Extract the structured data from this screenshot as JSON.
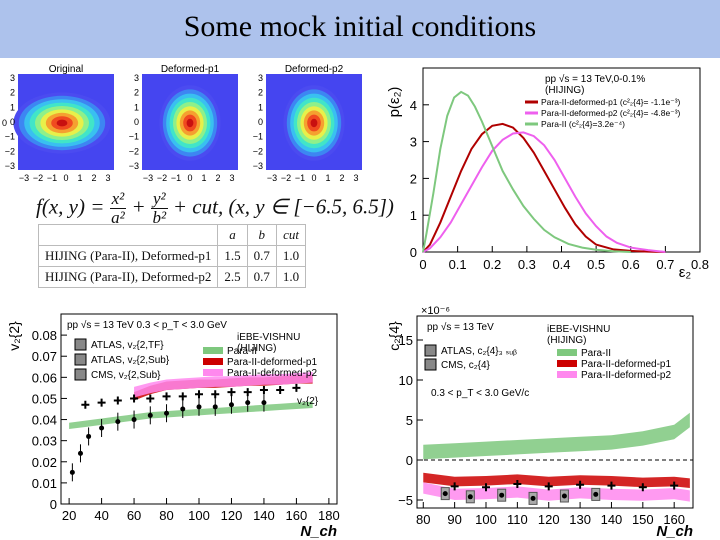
{
  "slide": {
    "title": "Some mock initial conditions"
  },
  "density_maps": {
    "panels": [
      {
        "label": "Original",
        "y_ticks": [
          "3",
          "2",
          "1",
          "0",
          "−1",
          "−2",
          "−3"
        ],
        "x_ticks": [
          "−3",
          "−2",
          "−1",
          "0",
          "1",
          "2",
          "3"
        ]
      },
      {
        "label": "Deformed-p1",
        "y_ticks": [
          "3",
          "2",
          "1",
          "0",
          "−1",
          "−2",
          "−3"
        ],
        "x_ticks": [
          "−3",
          "−2",
          "−1",
          "0",
          "1",
          "2",
          "3"
        ]
      },
      {
        "label": "Deformed-p2",
        "y_ticks": [
          "3",
          "2",
          "1",
          "0",
          "−1",
          "−2",
          "−3"
        ],
        "x_ticks": [
          "−3",
          "−2",
          "−1",
          "0",
          "1",
          "2",
          "3"
        ]
      }
    ],
    "left_tick_partial": "0"
  },
  "formula": {
    "lhs": "f(x, y) =",
    "t1_num": "x²",
    "t1_den": "a²",
    "plus1": "+",
    "t2_num": "y²",
    "t2_den": "b²",
    "rest": "+ cut, (x, y ∈ [−6.5, 6.5])"
  },
  "param_table": {
    "headers": [
      "",
      "a",
      "b",
      "cut"
    ],
    "rows": [
      [
        "HIJING (Para-II), Deformed-p1",
        "1.5",
        "0.7",
        "1.0"
      ],
      [
        "HIJING (Para-II), Deformed-p2",
        "2.5",
        "0.7",
        "1.0"
      ]
    ]
  },
  "chart_data": [
    {
      "type": "line",
      "ylabel": "p(ε₂)",
      "xlabel": "ε₂",
      "xlim": [
        0,
        0.8
      ],
      "ylim": [
        0,
        5
      ],
      "x_ticks": [
        "0",
        "0.1",
        "0.2",
        "0.3",
        "0.4",
        "0.5",
        "0.6",
        "0.7",
        "0.8"
      ],
      "y_ticks": [
        "0",
        "1",
        "2",
        "3",
        "4"
      ],
      "legend": {
        "header1": "pp √s = 13 TeV,0-0.1%",
        "header2": "(HIJING)",
        "entries": [
          "Para-II-deformed-p1 (c²₂{4}= -1.1e⁻³)",
          "Para-II-deformed-p2 (c²₂{4}= -4.8e⁻³)",
          "Para-II (c²₂{4}=3.2e⁻⁴)"
        ],
        "placement": "top-right"
      },
      "series": [
        {
          "name": "Para-II-deformed-p1 (c²₂{4}= -1.1e⁻³)",
          "color": "#b00000",
          "x": [
            0,
            0.02,
            0.05,
            0.08,
            0.11,
            0.14,
            0.17,
            0.2,
            0.23,
            0.26,
            0.29,
            0.32,
            0.35,
            0.38,
            0.41,
            0.44,
            0.47,
            0.5,
            0.55,
            0.6,
            0.65,
            0.7
          ],
          "y": [
            0,
            0.2,
            0.8,
            1.5,
            2.2,
            2.8,
            3.2,
            3.43,
            3.48,
            3.38,
            3.1,
            2.7,
            2.2,
            1.7,
            1.2,
            0.75,
            0.42,
            0.2,
            0.07,
            0.03,
            0.01,
            0
          ]
        },
        {
          "name": "Para-II-deformed-p2 (c²₂{4}= -4.8e⁻³)",
          "color": "#ee60ee",
          "x": [
            0,
            0.02,
            0.05,
            0.08,
            0.11,
            0.14,
            0.17,
            0.2,
            0.23,
            0.26,
            0.29,
            0.32,
            0.35,
            0.38,
            0.41,
            0.44,
            0.47,
            0.5,
            0.53,
            0.56,
            0.6,
            0.65,
            0.7
          ],
          "y": [
            0,
            0.1,
            0.4,
            0.8,
            1.3,
            1.8,
            2.3,
            2.75,
            3.05,
            3.22,
            3.25,
            3.15,
            2.9,
            2.5,
            2.0,
            1.5,
            1.05,
            0.7,
            0.42,
            0.25,
            0.12,
            0.05,
            0
          ]
        },
        {
          "name": "Para-II (c²₂{4}=3.2e⁻⁴)",
          "color": "#7ec87e",
          "x": [
            0,
            0.01,
            0.03,
            0.05,
            0.07,
            0.09,
            0.11,
            0.13,
            0.15,
            0.17,
            0.19,
            0.21,
            0.23,
            0.26,
            0.29,
            0.32,
            0.35,
            0.38,
            0.42,
            0.46,
            0.5,
            0.55,
            0.6
          ],
          "y": [
            0,
            0.5,
            1.6,
            2.8,
            3.7,
            4.2,
            4.35,
            4.25,
            3.95,
            3.55,
            3.1,
            2.65,
            2.2,
            1.7,
            1.25,
            0.9,
            0.6,
            0.4,
            0.22,
            0.12,
            0.06,
            0.02,
            0
          ]
        }
      ]
    },
    {
      "type": "scatter",
      "ylabel": "v₂{2}",
      "xlabel": "N_ch",
      "xlim": [
        15,
        185
      ],
      "ylim": [
        0,
        0.09
      ],
      "x_ticks": [
        "20",
        "40",
        "60",
        "80",
        "100",
        "120",
        "140",
        "160",
        "180"
      ],
      "y_ticks": [
        "0",
        "0.01",
        "0.02",
        "0.03",
        "0.04",
        "0.05",
        "0.06",
        "0.07",
        "0.08"
      ],
      "annotations": {
        "header": "pp √s = 13 TeV 0.3 < p_T < 3.0 GeV",
        "model": "iEBE-VISHNU",
        "model_sub": "(HIJING)",
        "curve_label": "v₂{2}"
      },
      "legend_data": [
        "ATLAS, v₂{2,TF}",
        "ATLAS, v₂{2,Sub}",
        "CMS,   v₂{2,Sub}"
      ],
      "legend_model": [
        "Para-II",
        "Para-II-deformed-p1",
        "Para-II-deformed-p2"
      ],
      "series": [
        {
          "name": "Para-II",
          "color": "#7ec87e",
          "x": [
            20,
            30,
            40,
            50,
            60,
            70,
            80,
            90,
            100,
            110,
            120,
            130,
            140,
            150,
            160,
            170
          ],
          "y": [
            0.037,
            0.038,
            0.039,
            0.04,
            0.041,
            0.042,
            0.0425,
            0.043,
            0.0435,
            0.044,
            0.0445,
            0.045,
            0.0455,
            0.046,
            0.0465,
            0.047
          ],
          "band": 0.0015
        },
        {
          "name": "Para-II-deformed-p1",
          "color": "#cc0000",
          "x": [
            60,
            70,
            80,
            90,
            100,
            110,
            120,
            130,
            140,
            150,
            160,
            170
          ],
          "y": [
            0.051,
            0.054,
            0.056,
            0.0565,
            0.057,
            0.057,
            0.0575,
            0.058,
            0.058,
            0.0585,
            0.059,
            0.059
          ],
          "band": 0.002
        },
        {
          "name": "Para-II-deformed-p2",
          "color": "#ff88ee",
          "x": [
            60,
            70,
            80,
            90,
            100,
            110,
            120,
            130,
            140,
            150,
            160,
            170
          ],
          "y": [
            0.053,
            0.055,
            0.0565,
            0.057,
            0.0575,
            0.058,
            0.058,
            0.0585,
            0.059,
            0.059,
            0.0595,
            0.06
          ],
          "band": 0.0025
        },
        {
          "name": "ATLAS, v₂{2,TF}",
          "x": [
            30,
            40,
            50,
            60,
            70,
            80,
            90,
            100,
            110,
            120,
            130,
            140,
            150,
            160
          ],
          "y": [
            0.047,
            0.048,
            0.049,
            0.05,
            0.05,
            0.051,
            0.051,
            0.052,
            0.052,
            0.053,
            0.053,
            0.054,
            0.054,
            0.055
          ]
        },
        {
          "name": "CMS,   v₂{2,Sub}",
          "x": [
            22,
            27,
            32,
            40,
            50,
            60,
            70,
            80,
            90,
            100,
            110,
            120,
            130,
            140
          ],
          "y": [
            0.015,
            0.024,
            0.032,
            0.036,
            0.039,
            0.04,
            0.042,
            0.043,
            0.045,
            0.046,
            0.046,
            0.047,
            0.048,
            0.048
          ]
        }
      ]
    },
    {
      "type": "scatter",
      "ylabel": "c₂{4}",
      "xlabel": "N_ch",
      "scale_note": "×10⁻⁶",
      "xlim": [
        78,
        166
      ],
      "ylim": [
        -6,
        18
      ],
      "x_ticks": [
        "80",
        "90",
        "100",
        "110",
        "120",
        "130",
        "140",
        "150",
        "160"
      ],
      "y_ticks": [
        "−5",
        "0",
        "5",
        "10",
        "15"
      ],
      "annotations": {
        "header": "pp √s = 13 TeV",
        "model": "iEBE-VISHNU",
        "model_sub": "(HIJING)",
        "pt_range": "0.3 < p_T < 3.0 GeV/c"
      },
      "legend_data": [
        "ATLAS, c₂{4}₃ ₛᵤᵦ",
        "CMS,   c₂{4}"
      ],
      "legend_model": [
        "Para-II",
        "Para-II-deformed-p1",
        "Para-II-deformed-p2"
      ],
      "series": [
        {
          "name": "Para-II",
          "color": "#7ec87e",
          "x": [
            80,
            90,
            100,
            110,
            120,
            130,
            140,
            150,
            160,
            165
          ],
          "y": [
            1.0,
            1.2,
            1.4,
            1.6,
            1.8,
            2.0,
            2.2,
            2.7,
            3.5,
            5.0
          ],
          "band": 0.9
        },
        {
          "name": "Para-II-deformed-p1",
          "color": "#cc0000",
          "x": [
            80,
            90,
            100,
            110,
            120,
            130,
            140,
            150,
            160,
            165
          ],
          "y": [
            -2.2,
            -2.7,
            -2.6,
            -2.4,
            -2.7,
            -2.5,
            -2.6,
            -2.8,
            -2.7,
            -2.9
          ],
          "band": 0.6
        },
        {
          "name": "Para-II-deformed-p2",
          "color": "#ff88ee",
          "x": [
            80,
            90,
            100,
            110,
            120,
            130,
            140,
            150,
            160,
            165
          ],
          "y": [
            -3.5,
            -4.3,
            -4.2,
            -4.0,
            -4.4,
            -4.1,
            -4.3,
            -4.4,
            -4.2,
            -4.5
          ],
          "band": 0.7
        },
        {
          "name": "ATLAS, c₂{4}₃ ₛᵤᵦ",
          "x": [
            90,
            100,
            110,
            120,
            130,
            140,
            150,
            160
          ],
          "y": [
            -3.3,
            -3.4,
            -3.0,
            -3.3,
            -3.1,
            -3.2,
            -3.4,
            -3.2
          ]
        },
        {
          "name": "CMS,   c₂{4}",
          "x": [
            87,
            95,
            105,
            115,
            125,
            135
          ],
          "y": [
            -4.2,
            -4.6,
            -4.4,
            -4.8,
            -4.5,
            -4.3
          ]
        }
      ]
    }
  ]
}
